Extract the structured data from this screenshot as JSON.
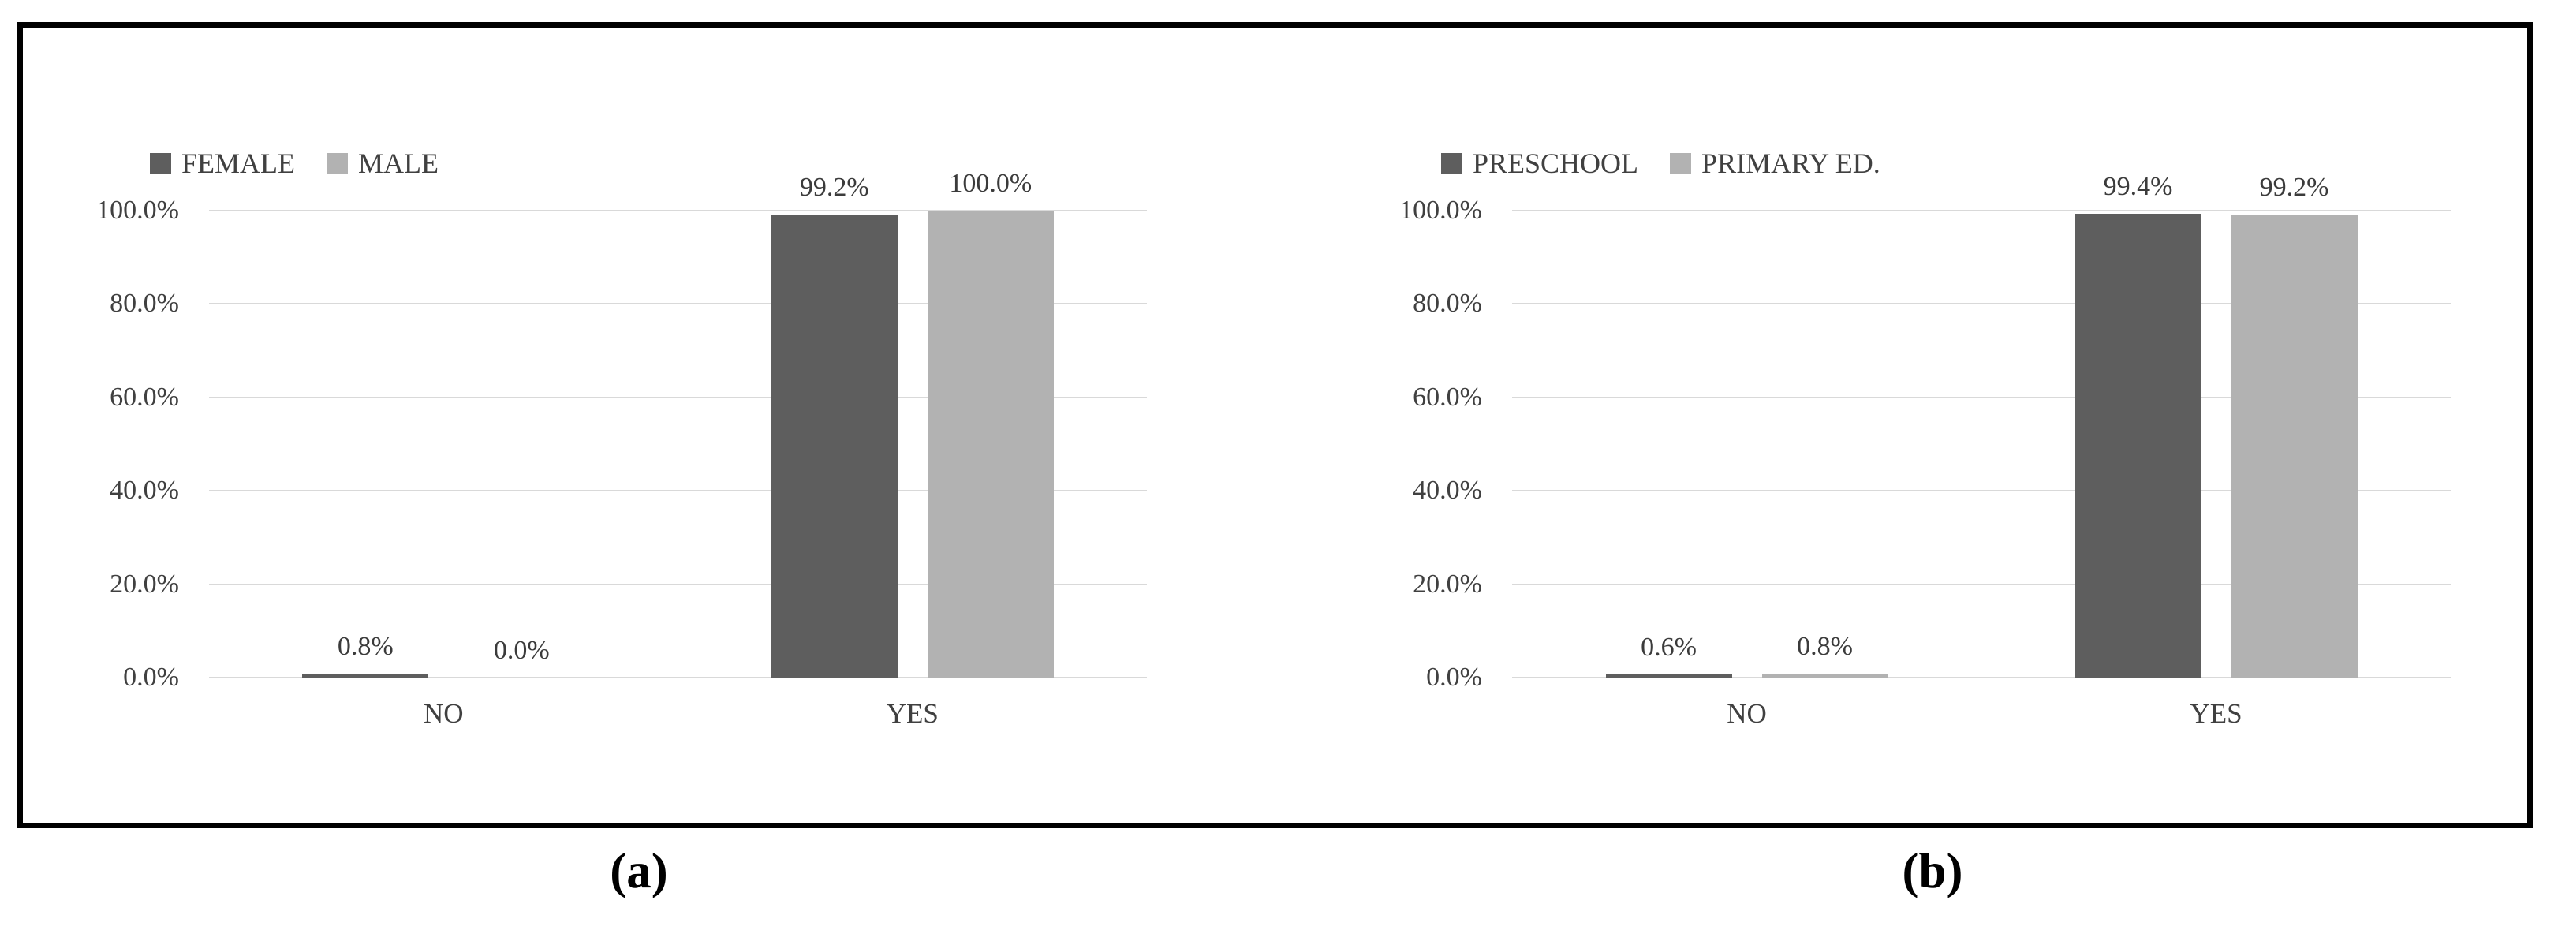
{
  "figure": {
    "captions": {
      "a": "(a)",
      "b": "(b)"
    },
    "colors": {
      "series_dark": "#5e5e5e",
      "series_light": "#b2b2b2",
      "gridline": "#d9d9d9",
      "axis_text": "#404040",
      "frame": "#000000",
      "background": "#ffffff"
    }
  },
  "chart_data": [
    {
      "id": "a",
      "type": "bar",
      "title": "",
      "xlabel": "",
      "ylabel": "",
      "categories": [
        "NO",
        "YES"
      ],
      "series": [
        {
          "name": "FEMALE",
          "color": "#5e5e5e",
          "values": [
            0.8,
            99.2
          ],
          "labels": [
            "0.8%",
            "99.2%"
          ]
        },
        {
          "name": "MALE",
          "color": "#b2b2b2",
          "values": [
            0.0,
            100.0
          ],
          "labels": [
            "0.0%",
            "100.0%"
          ]
        }
      ],
      "y_tick_values": [
        100,
        80,
        60,
        40,
        20,
        0
      ],
      "y_tick_labels": [
        "100.0%",
        "80.0%",
        "60.0%",
        "40.0%",
        "20.0%",
        "0.0%"
      ],
      "ylim": [
        0,
        100
      ],
      "grid": true,
      "legend_position": "top-left"
    },
    {
      "id": "b",
      "type": "bar",
      "title": "",
      "xlabel": "",
      "ylabel": "",
      "categories": [
        "NO",
        "YES"
      ],
      "series": [
        {
          "name": "PRESCHOOL",
          "color": "#5e5e5e",
          "values": [
            0.6,
            99.4
          ],
          "labels": [
            "0.6%",
            "99.4%"
          ]
        },
        {
          "name": "PRIMARY ED.",
          "color": "#b2b2b2",
          "values": [
            0.8,
            99.2
          ],
          "labels": [
            "0.8%",
            "99.2%"
          ]
        }
      ],
      "y_tick_values": [
        100,
        80,
        60,
        40,
        20,
        0
      ],
      "y_tick_labels": [
        "100.0%",
        "80.0%",
        "60.0%",
        "40.0%",
        "20.0%",
        "0.0%"
      ],
      "ylim": [
        0,
        100
      ],
      "grid": true,
      "legend_position": "top-left"
    }
  ]
}
